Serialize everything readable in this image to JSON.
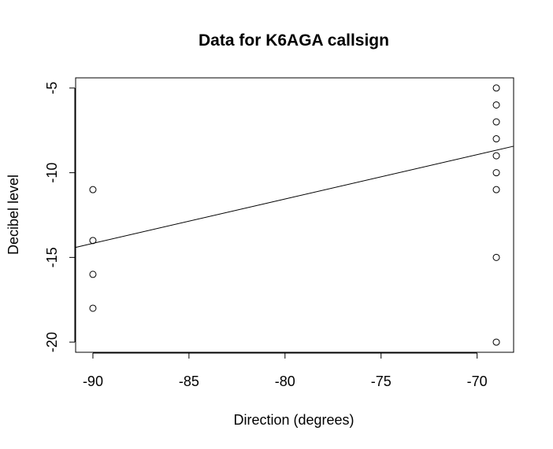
{
  "chart_data": {
    "type": "scatter",
    "title": "Data for K6AGA callsign",
    "xlabel": "Direction (degrees)",
    "ylabel": "Decibel level",
    "xlim": [
      -90.9,
      -68.1
    ],
    "ylim": [
      -20.6,
      -4.4
    ],
    "x_ticks": [
      -90,
      -85,
      -80,
      -75,
      -70
    ],
    "y_ticks": [
      -5,
      -10,
      -15,
      -20
    ],
    "x_tick_labels": [
      "-90",
      "-85",
      "-80",
      "-75",
      "-70"
    ],
    "y_tick_labels": [
      "-5",
      "-10",
      "-15",
      "-20"
    ],
    "points": [
      {
        "x": -90,
        "y": -11
      },
      {
        "x": -90,
        "y": -14
      },
      {
        "x": -90,
        "y": -16
      },
      {
        "x": -90,
        "y": -18
      },
      {
        "x": -69,
        "y": -5
      },
      {
        "x": -69,
        "y": -6
      },
      {
        "x": -69,
        "y": -7
      },
      {
        "x": -69,
        "y": -8
      },
      {
        "x": -69,
        "y": -9
      },
      {
        "x": -69,
        "y": -10
      },
      {
        "x": -69,
        "y": -11
      },
      {
        "x": -69,
        "y": -15
      },
      {
        "x": -69,
        "y": -20
      }
    ],
    "regression_line": {
      "slope": 0.2619,
      "intercept": 9.4
    },
    "grid": false,
    "legend": "none"
  }
}
